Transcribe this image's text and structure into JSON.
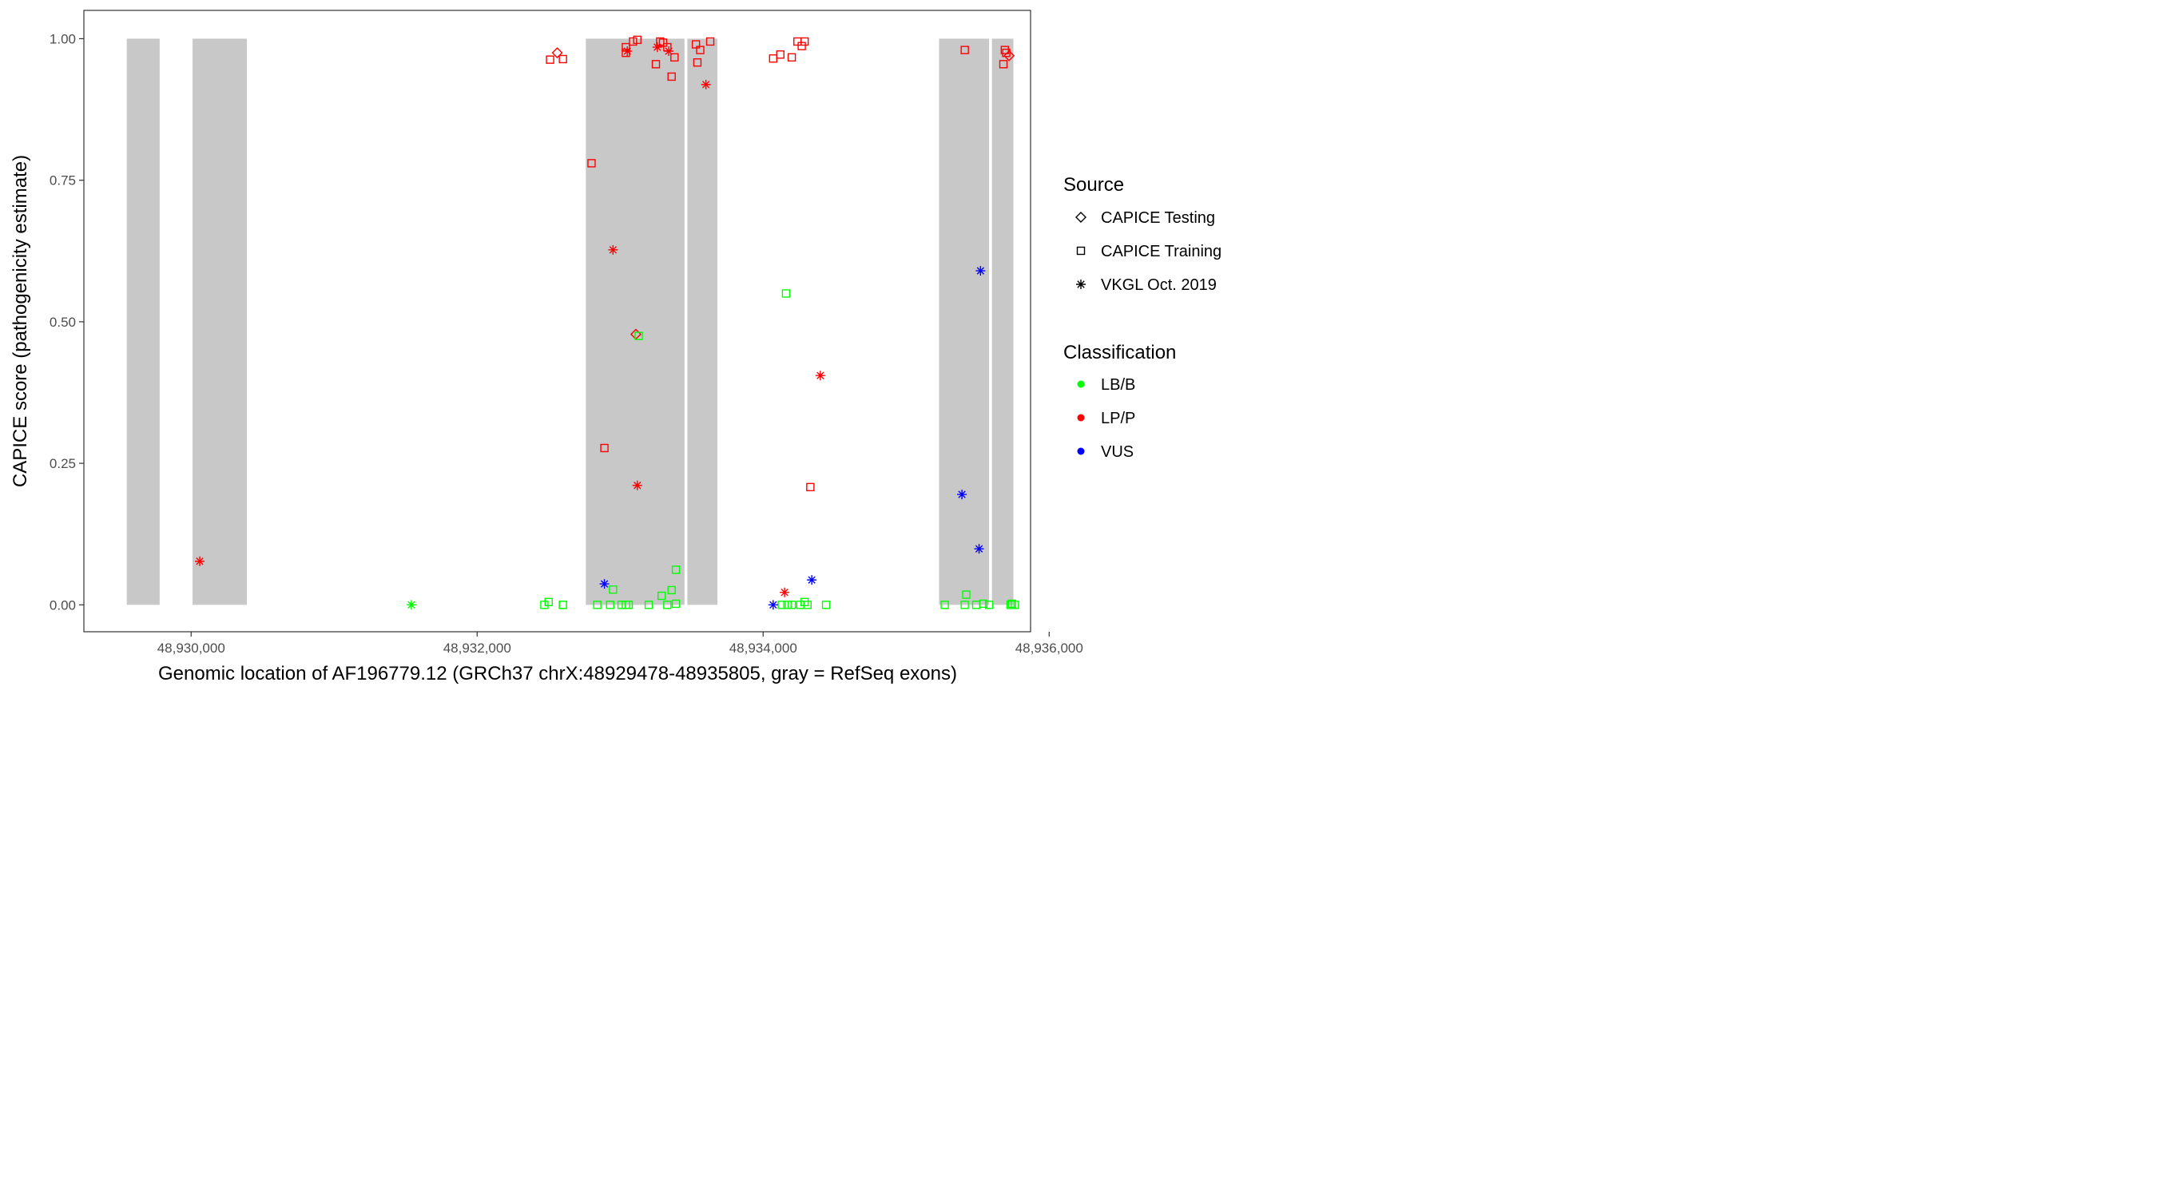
{
  "chart_data": {
    "type": "scatter",
    "xlabel": "Genomic location of AF196779.12 (GRCh37 chrX:48929478-48935805, gray = RefSeq exons)",
    "ylabel": "CAPICE score (pathogenicity estimate)",
    "xlim": [
      48929250,
      48935870
    ],
    "ylim": [
      -0.0475,
      1.05
    ],
    "x_ticks": [
      48930000,
      48932000,
      48934000,
      48936000
    ],
    "x_tick_labels": [
      "48,930,000",
      "48,932,000",
      "48,934,000",
      "48,936,000"
    ],
    "y_ticks": [
      0,
      0.25,
      0.5,
      0.75,
      1.0
    ],
    "y_tick_labels": [
      "0.00",
      "0.25",
      "0.50",
      "0.75",
      "1.00"
    ],
    "grid": false,
    "exons": [
      {
        "start": 48929550,
        "end": 48929780
      },
      {
        "start": 48930010,
        "end": 48930390
      },
      {
        "start": 48932760,
        "end": 48933450
      },
      {
        "start": 48933470,
        "end": 48933680
      },
      {
        "start": 48935230,
        "end": 48935580
      },
      {
        "start": 48935600,
        "end": 48935750
      }
    ],
    "exon_color": "#c8c8c8",
    "legend": {
      "placement": "right",
      "source_title": "Source",
      "source_items": [
        {
          "label": "CAPICE Testing",
          "shape": "diamond"
        },
        {
          "label": "CAPICE Training",
          "shape": "square"
        },
        {
          "label": "VKGL Oct. 2019",
          "shape": "asterisk"
        }
      ],
      "class_title": "Classification",
      "class_items": [
        {
          "label": "LB/B",
          "color": "#00ff00"
        },
        {
          "label": "LP/P",
          "color": "#ff0000"
        },
        {
          "label": "VUS",
          "color": "#0000ff"
        }
      ]
    },
    "points": [
      {
        "x": 48930060,
        "y": 0.077,
        "shape": "asterisk",
        "cls": "LP/P"
      },
      {
        "x": 48931540,
        "y": 0.0,
        "shape": "asterisk",
        "cls": "LB/B"
      },
      {
        "x": 48932510,
        "y": 0.963,
        "shape": "square",
        "cls": "LP/P"
      },
      {
        "x": 48932560,
        "y": 0.975,
        "shape": "diamond",
        "cls": "LP/P"
      },
      {
        "x": 48932600,
        "y": 0.964,
        "shape": "square",
        "cls": "LP/P"
      },
      {
        "x": 48932800,
        "y": 0.78,
        "shape": "square",
        "cls": "LP/P"
      },
      {
        "x": 48932890,
        "y": 0.277,
        "shape": "square",
        "cls": "LP/P"
      },
      {
        "x": 48932950,
        "y": 0.627,
        "shape": "asterisk",
        "cls": "LP/P"
      },
      {
        "x": 48933040,
        "y": 0.985,
        "shape": "square",
        "cls": "LP/P"
      },
      {
        "x": 48933040,
        "y": 0.975,
        "shape": "square",
        "cls": "LP/P"
      },
      {
        "x": 48933050,
        "y": 0.978,
        "shape": "asterisk",
        "cls": "LP/P"
      },
      {
        "x": 48933090,
        "y": 0.995,
        "shape": "square",
        "cls": "LP/P"
      },
      {
        "x": 48933120,
        "y": 0.998,
        "shape": "square",
        "cls": "LP/P"
      },
      {
        "x": 48933110,
        "y": 0.478,
        "shape": "diamond",
        "cls": "LP/P"
      },
      {
        "x": 48933120,
        "y": 0.211,
        "shape": "asterisk",
        "cls": "LP/P"
      },
      {
        "x": 48933250,
        "y": 0.955,
        "shape": "square",
        "cls": "LP/P"
      },
      {
        "x": 48933260,
        "y": 0.985,
        "shape": "asterisk",
        "cls": "LP/P"
      },
      {
        "x": 48933280,
        "y": 0.995,
        "shape": "square",
        "cls": "LP/P"
      },
      {
        "x": 48933300,
        "y": 0.993,
        "shape": "square",
        "cls": "LP/P"
      },
      {
        "x": 48933330,
        "y": 0.985,
        "shape": "square",
        "cls": "LP/P"
      },
      {
        "x": 48933340,
        "y": 0.978,
        "shape": "asterisk",
        "cls": "LP/P"
      },
      {
        "x": 48933360,
        "y": 0.933,
        "shape": "square",
        "cls": "LP/P"
      },
      {
        "x": 48933380,
        "y": 0.967,
        "shape": "square",
        "cls": "LP/P"
      },
      {
        "x": 48933530,
        "y": 0.99,
        "shape": "square",
        "cls": "LP/P"
      },
      {
        "x": 48933540,
        "y": 0.958,
        "shape": "square",
        "cls": "LP/P"
      },
      {
        "x": 48933560,
        "y": 0.98,
        "shape": "square",
        "cls": "LP/P"
      },
      {
        "x": 48933600,
        "y": 0.919,
        "shape": "asterisk",
        "cls": "LP/P"
      },
      {
        "x": 48933630,
        "y": 0.995,
        "shape": "square",
        "cls": "LP/P"
      },
      {
        "x": 48934070,
        "y": 0.965,
        "shape": "square",
        "cls": "LP/P"
      },
      {
        "x": 48934120,
        "y": 0.972,
        "shape": "square",
        "cls": "LP/P"
      },
      {
        "x": 48934150,
        "y": 0.022,
        "shape": "asterisk",
        "cls": "LP/P"
      },
      {
        "x": 48934200,
        "y": 0.967,
        "shape": "square",
        "cls": "LP/P"
      },
      {
        "x": 48934240,
        "y": 0.995,
        "shape": "square",
        "cls": "LP/P"
      },
      {
        "x": 48934270,
        "y": 0.987,
        "shape": "square",
        "cls": "LP/P"
      },
      {
        "x": 48934290,
        "y": 0.995,
        "shape": "square",
        "cls": "LP/P"
      },
      {
        "x": 48934330,
        "y": 0.208,
        "shape": "square",
        "cls": "LP/P"
      },
      {
        "x": 48934400,
        "y": 0.405,
        "shape": "asterisk",
        "cls": "LP/P"
      },
      {
        "x": 48935410,
        "y": 0.98,
        "shape": "square",
        "cls": "LP/P"
      },
      {
        "x": 48935680,
        "y": 0.955,
        "shape": "square",
        "cls": "LP/P"
      },
      {
        "x": 48935690,
        "y": 0.98,
        "shape": "square",
        "cls": "LP/P"
      },
      {
        "x": 48935700,
        "y": 0.975,
        "shape": "square",
        "cls": "LP/P"
      },
      {
        "x": 48935720,
        "y": 0.97,
        "shape": "diamond",
        "cls": "LP/P"
      },
      {
        "x": 48932470,
        "y": 0.0,
        "shape": "square",
        "cls": "LB/B"
      },
      {
        "x": 48932500,
        "y": 0.005,
        "shape": "square",
        "cls": "LB/B"
      },
      {
        "x": 48932600,
        "y": 0.0,
        "shape": "square",
        "cls": "LB/B"
      },
      {
        "x": 48932600,
        "y": 0.0,
        "shape": "square",
        "cls": "LB/B"
      },
      {
        "x": 48932840,
        "y": 0.0,
        "shape": "square",
        "cls": "LB/B"
      },
      {
        "x": 48932930,
        "y": 0.0,
        "shape": "square",
        "cls": "LB/B"
      },
      {
        "x": 48932950,
        "y": 0.027,
        "shape": "square",
        "cls": "LB/B"
      },
      {
        "x": 48933010,
        "y": 0.0,
        "shape": "square",
        "cls": "LB/B"
      },
      {
        "x": 48933040,
        "y": 0.0,
        "shape": "square",
        "cls": "LB/B"
      },
      {
        "x": 48933060,
        "y": 0.0,
        "shape": "square",
        "cls": "LB/B"
      },
      {
        "x": 48933130,
        "y": 0.475,
        "shape": "square",
        "cls": "LB/B"
      },
      {
        "x": 48933200,
        "y": 0.0,
        "shape": "square",
        "cls": "LB/B"
      },
      {
        "x": 48933290,
        "y": 0.016,
        "shape": "square",
        "cls": "LB/B"
      },
      {
        "x": 48933330,
        "y": 0.0,
        "shape": "square",
        "cls": "LB/B"
      },
      {
        "x": 48933360,
        "y": 0.026,
        "shape": "square",
        "cls": "LB/B"
      },
      {
        "x": 48933390,
        "y": 0.062,
        "shape": "square",
        "cls": "LB/B"
      },
      {
        "x": 48933390,
        "y": 0.002,
        "shape": "square",
        "cls": "LB/B"
      },
      {
        "x": 48934130,
        "y": 0.0,
        "shape": "square",
        "cls": "LB/B"
      },
      {
        "x": 48934160,
        "y": 0.55,
        "shape": "square",
        "cls": "LB/B"
      },
      {
        "x": 48934170,
        "y": 0.0,
        "shape": "square",
        "cls": "LB/B"
      },
      {
        "x": 48934200,
        "y": 0.0,
        "shape": "square",
        "cls": "LB/B"
      },
      {
        "x": 48934260,
        "y": 0.0,
        "shape": "square",
        "cls": "LB/B"
      },
      {
        "x": 48934290,
        "y": 0.005,
        "shape": "square",
        "cls": "LB/B"
      },
      {
        "x": 48934310,
        "y": 0.0,
        "shape": "square",
        "cls": "LB/B"
      },
      {
        "x": 48934440,
        "y": 0.0,
        "shape": "square",
        "cls": "LB/B"
      },
      {
        "x": 48935270,
        "y": 0.0,
        "shape": "square",
        "cls": "LB/B"
      },
      {
        "x": 48935410,
        "y": 0.0,
        "shape": "square",
        "cls": "LB/B"
      },
      {
        "x": 48935420,
        "y": 0.018,
        "shape": "square",
        "cls": "LB/B"
      },
      {
        "x": 48935490,
        "y": 0.0,
        "shape": "square",
        "cls": "LB/B"
      },
      {
        "x": 48935540,
        "y": 0.002,
        "shape": "square",
        "cls": "LB/B"
      },
      {
        "x": 48935580,
        "y": 0.0,
        "shape": "square",
        "cls": "LB/B"
      },
      {
        "x": 48935730,
        "y": 0.0,
        "shape": "square",
        "cls": "LB/B"
      },
      {
        "x": 48935740,
        "y": 0.002,
        "shape": "square",
        "cls": "LB/B"
      },
      {
        "x": 48935760,
        "y": 0.0,
        "shape": "square",
        "cls": "LB/B"
      },
      {
        "x": 48932890,
        "y": 0.037,
        "shape": "asterisk",
        "cls": "VUS"
      },
      {
        "x": 48934070,
        "y": 0.0,
        "shape": "asterisk",
        "cls": "VUS"
      },
      {
        "x": 48934340,
        "y": 0.044,
        "shape": "asterisk",
        "cls": "VUS"
      },
      {
        "x": 48935390,
        "y": 0.195,
        "shape": "asterisk",
        "cls": "VUS"
      },
      {
        "x": 48935520,
        "y": 0.59,
        "shape": "asterisk",
        "cls": "VUS"
      },
      {
        "x": 48935510,
        "y": 0.099,
        "shape": "asterisk",
        "cls": "VUS"
      }
    ]
  }
}
